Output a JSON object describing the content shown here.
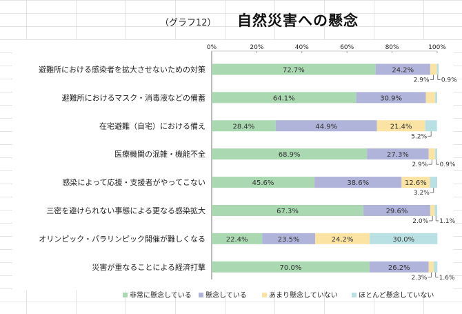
{
  "graph_number": "（グラフ12）",
  "colors": {
    "very_concerned": "#a9d8b1",
    "concerned": "#b0b3da",
    "not_very_concerned": "#fbe3a3",
    "hardly_concerned": "#b9e1e4",
    "grid_bg": "#e4e4e4"
  },
  "chart_data": {
    "type": "bar",
    "orientation": "horizontal",
    "stacked": true,
    "title": "自然災害への懸念",
    "xlim": [
      0,
      100
    ],
    "x_ticks": [
      "0%",
      "20%",
      "40%",
      "60%",
      "80%",
      "100%"
    ],
    "categories": [
      "避難所における感染者を拡大させないための対策",
      "避難所におけるマスク・消毒液などの備蓄",
      "在宅避難（自宅）における備え",
      "医療機関の混雑・機能不全",
      "感染によって応援・支援者がやってこない",
      "三密を避けられない事態による更なる感染拡大",
      "オリンピック・パラリンピック開催が難しくなる",
      "災害が重なることによる経済打撃"
    ],
    "series": [
      {
        "name": "非常に懸念している",
        "values": [
          72.7,
          64.1,
          28.4,
          68.9,
          45.6,
          67.3,
          22.4,
          70.0
        ]
      },
      {
        "name": "懸念している",
        "values": [
          24.2,
          30.9,
          44.9,
          27.3,
          38.6,
          29.6,
          23.5,
          26.2
        ]
      },
      {
        "name": "あまり懸念していない",
        "values": [
          2.9,
          4.1,
          21.4,
          2.9,
          12.6,
          2.0,
          24.2,
          2.3
        ]
      },
      {
        "name": "ほとんど懸念していない",
        "values": [
          0.9,
          0.9,
          5.2,
          0.9,
          3.2,
          1.1,
          30.0,
          1.6
        ]
      }
    ],
    "data_labels": [
      [
        "72.7%",
        "24.2%",
        "2.9%",
        "0.9%"
      ],
      [
        "64.1%",
        "30.9%",
        "",
        ""
      ],
      [
        "28.4%",
        "44.9%",
        "21.4%",
        "5.2%"
      ],
      [
        "68.9%",
        "27.3%",
        "2.9%",
        "0.9%"
      ],
      [
        "45.6%",
        "38.6%",
        "12.6%",
        "3.2%"
      ],
      [
        "67.3%",
        "29.6%",
        "2.0%",
        "1.1%"
      ],
      [
        "22.4%",
        "23.5%",
        "24.2%",
        "30.0%"
      ],
      [
        "70.0%",
        "26.2%",
        "2.3%",
        "1.6%"
      ]
    ],
    "legend_position": "bottom"
  }
}
